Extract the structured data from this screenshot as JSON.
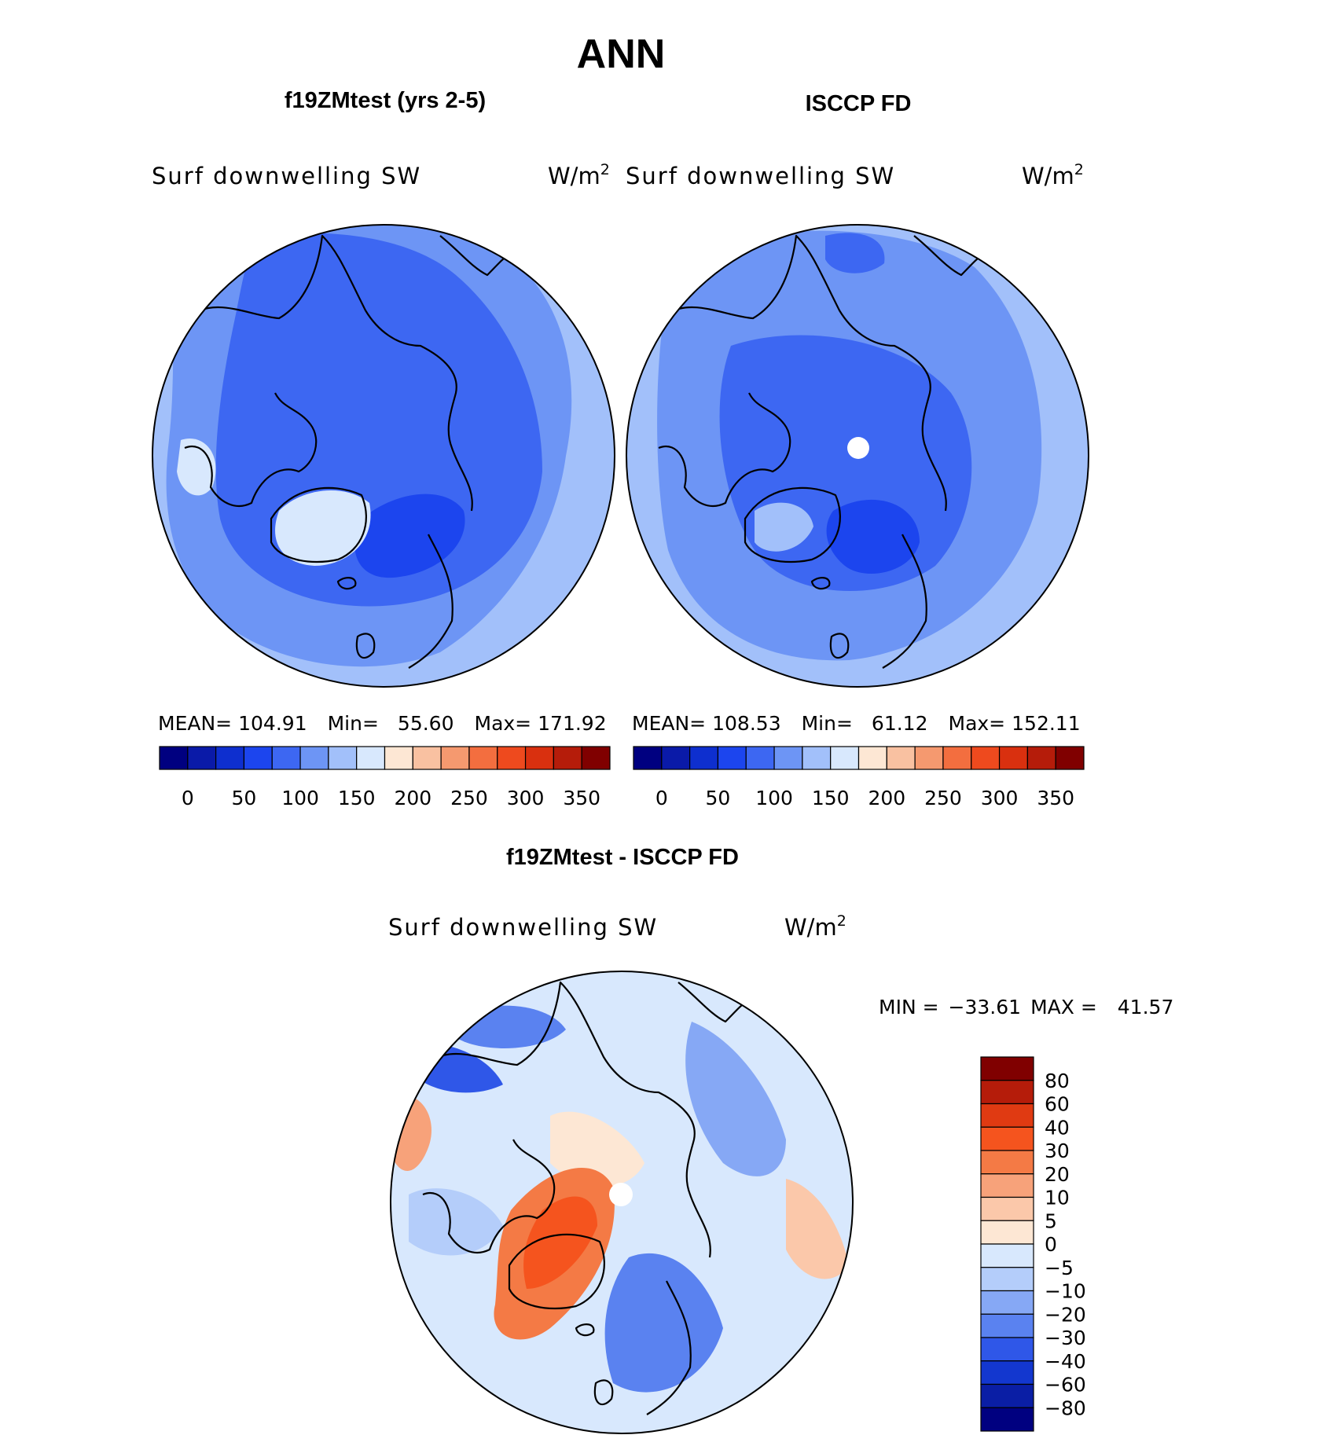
{
  "figure": {
    "title": "ANN"
  },
  "panels": [
    {
      "title": "f19ZMtest (yrs 2-5)",
      "variable": "Surf downwelling SW",
      "units": "W/m",
      "units_exp": "2",
      "stats": {
        "mean_label": "MEAN=",
        "mean": "104.91",
        "min_label": "Min=",
        "min": "55.60",
        "max_label": "Max=",
        "max": "171.92"
      }
    },
    {
      "title": "ISCCP FD",
      "variable": "Surf downwelling SW",
      "units": "W/m",
      "units_exp": "2",
      "stats": {
        "mean_label": "MEAN=",
        "mean": "108.53",
        "min_label": "Min=",
        "min": "61.12",
        "max_label": "Max=",
        "max": "152.11"
      }
    },
    {
      "title": "f19ZMtest - ISCCP FD",
      "variable": "Surf downwelling SW",
      "units": "W/m",
      "units_exp": "2",
      "stats": {
        "min_label": "MIN =",
        "min": "−33.61",
        "max_label": "MAX =",
        "max": "41.57"
      }
    }
  ],
  "chart_data": [
    {
      "type": "heatmap",
      "projection": "north polar stereographic",
      "title": "f19ZMtest (yrs 2-5)",
      "variable": "Surf downwelling SW",
      "units": "W/m2",
      "mean": 104.91,
      "min": 55.6,
      "max": 171.92,
      "colorbar": {
        "levels": [
          0,
          25,
          50,
          75,
          100,
          125,
          150,
          175,
          200,
          225,
          250,
          275,
          300,
          325,
          350
        ],
        "tick_labels": [
          "0",
          "50",
          "100",
          "150",
          "200",
          "250",
          "300",
          "350"
        ],
        "colors": [
          "#000080",
          "#0a1aa8",
          "#0e2fcf",
          "#1c45ee",
          "#3d67f2",
          "#6d95f5",
          "#a2c0fa",
          "#d8e8fd",
          "#fde7d4",
          "#f9c1a1",
          "#f5996f",
          "#f36e3f",
          "#ee4a1e",
          "#d9300f",
          "#b51c0a",
          "#800000"
        ]
      }
    },
    {
      "type": "heatmap",
      "projection": "north polar stereographic",
      "title": "ISCCP FD",
      "variable": "Surf downwelling SW",
      "units": "W/m2",
      "mean": 108.53,
      "min": 61.12,
      "max": 152.11,
      "colorbar": {
        "levels": [
          0,
          25,
          50,
          75,
          100,
          125,
          150,
          175,
          200,
          225,
          250,
          275,
          300,
          325,
          350
        ],
        "tick_labels": [
          "0",
          "50",
          "100",
          "150",
          "200",
          "250",
          "300",
          "350"
        ],
        "colors": [
          "#000080",
          "#0a1aa8",
          "#0e2fcf",
          "#1c45ee",
          "#3d67f2",
          "#6d95f5",
          "#a2c0fa",
          "#d8e8fd",
          "#fde7d4",
          "#f9c1a1",
          "#f5996f",
          "#f36e3f",
          "#ee4a1e",
          "#d9300f",
          "#b51c0a",
          "#800000"
        ]
      }
    },
    {
      "type": "heatmap",
      "projection": "north polar stereographic",
      "title": "f19ZMtest - ISCCP FD",
      "variable": "Surf downwelling SW",
      "units": "W/m2",
      "min": -33.61,
      "max": 41.57,
      "colorbar": {
        "levels": [
          80,
          60,
          40,
          30,
          20,
          10,
          5,
          0,
          -5,
          -10,
          -20,
          -30,
          -40,
          -60,
          -80
        ],
        "tick_labels": [
          "80",
          "60",
          "40",
          "30",
          "20",
          "10",
          "5",
          "0",
          "−5",
          "−10",
          "−20",
          "−30",
          "−40",
          "−60",
          "−80"
        ],
        "colors": [
          "#800000",
          "#b51c0a",
          "#e03a12",
          "#f5541e",
          "#f47a45",
          "#f7a27a",
          "#fbc8aa",
          "#fde7d4",
          "#d8e8fd",
          "#b4cdfa",
          "#86a8f5",
          "#5a82f0",
          "#2f57e8",
          "#1337cf",
          "#0a1ea5",
          "#000080"
        ]
      }
    }
  ]
}
